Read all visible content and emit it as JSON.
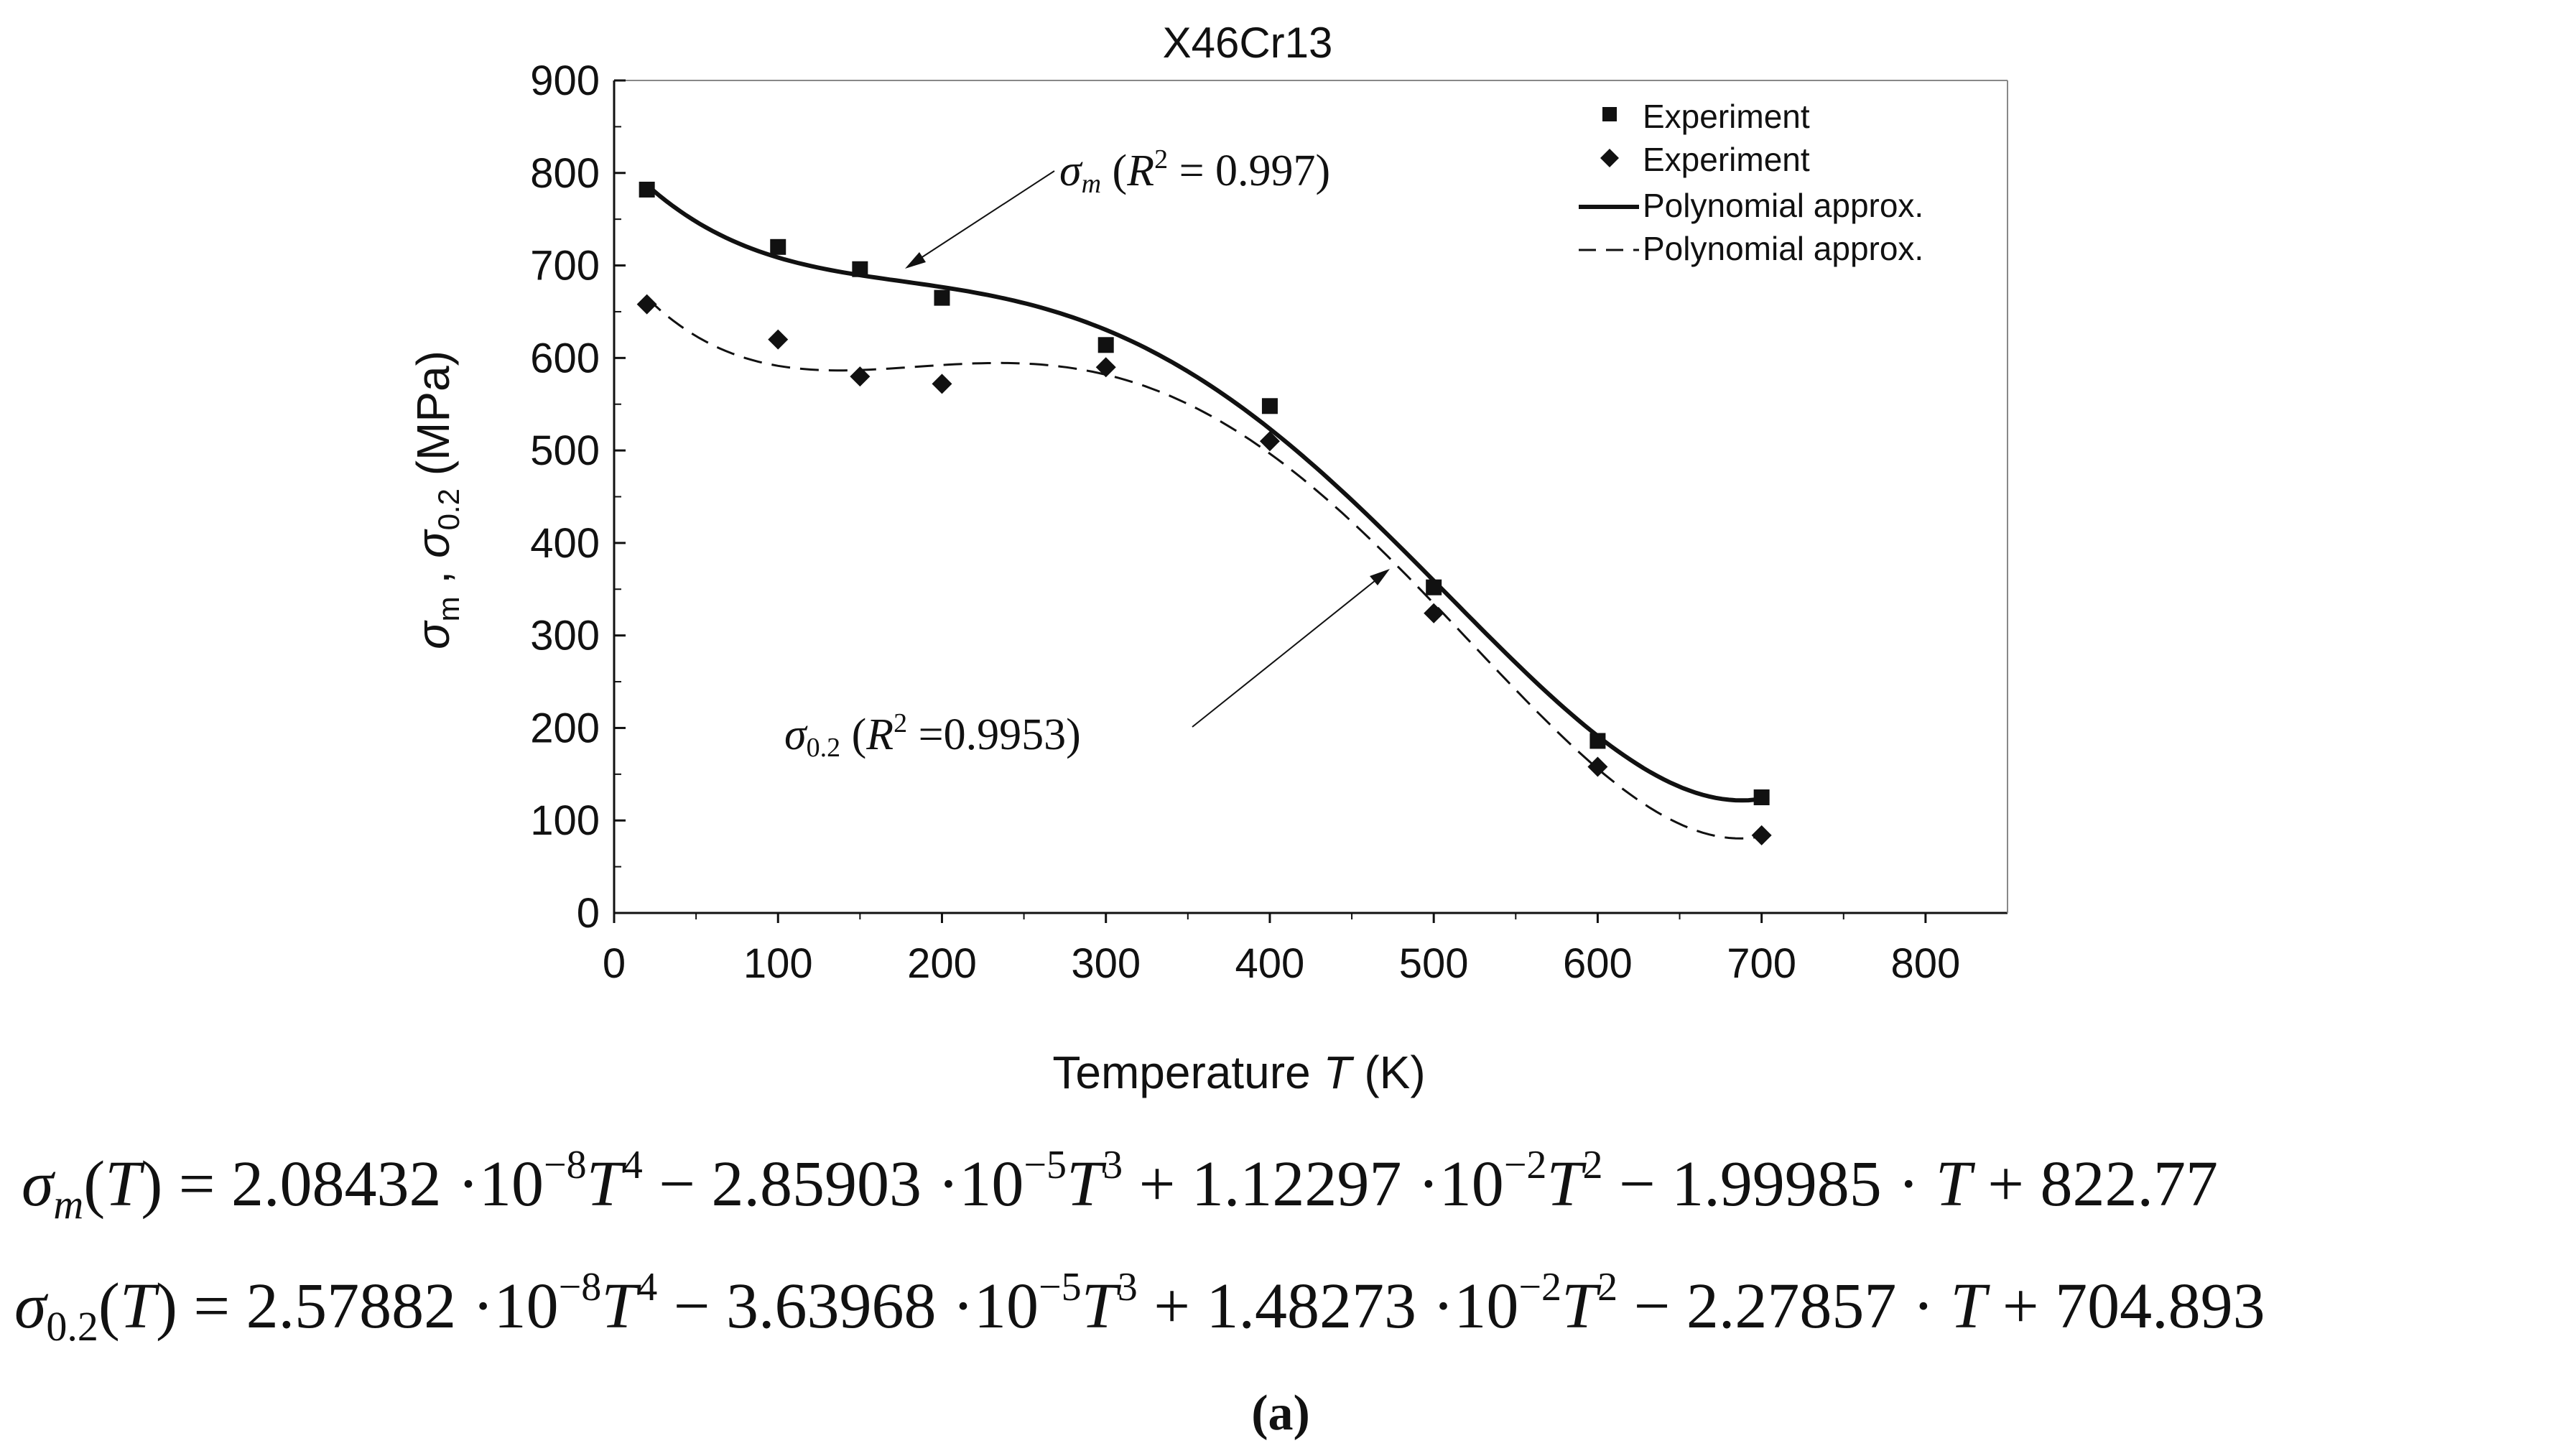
{
  "chart_data": {
    "type": "scatter",
    "title": "X46Cr13",
    "xlabel": "Temperature T (K)",
    "ylabel": "σm , σ0.2 (MPa)",
    "xlim": [
      0,
      850
    ],
    "ylim": [
      0,
      900
    ],
    "x_ticks": [
      0,
      100,
      200,
      300,
      400,
      500,
      600,
      700,
      800
    ],
    "y_ticks": [
      0,
      100,
      200,
      300,
      400,
      500,
      600,
      700,
      800,
      900
    ],
    "series": [
      {
        "name": "Experiment",
        "marker": "square",
        "quantity": "σm",
        "x": [
          20,
          100,
          150,
          200,
          300,
          400,
          500,
          600,
          700
        ],
        "y": [
          782,
          720,
          696,
          665,
          614,
          548,
          352,
          186,
          125
        ]
      },
      {
        "name": "Experiment",
        "marker": "diamond",
        "quantity": "σ0.2",
        "x": [
          20,
          100,
          150,
          200,
          300,
          400,
          500,
          600,
          700
        ],
        "y": [
          658,
          620,
          580,
          572,
          590,
          510,
          324,
          158,
          84
        ]
      },
      {
        "name": "Polynomial approx.",
        "style": "solid",
        "quantity": "σm",
        "coefficients": [
          2.08432e-08,
          -2.85903e-05,
          0.0112297,
          -1.99985,
          822.77
        ],
        "r2_label": "σm (R2 = 0.997)"
      },
      {
        "name": "Polynomial approx.",
        "style": "dashed",
        "quantity": "σ0.2",
        "coefficients": [
          2.57882e-08,
          -3.63968e-05,
          0.0148273,
          -2.27857,
          704.893
        ],
        "r2_label": "σ0.2 (R2 =0.9953)"
      }
    ],
    "legend_position": "top-right",
    "annotations": [
      {
        "text": "σm (R2 = 0.997)",
        "points_to": "σm curve near T=180 K"
      },
      {
        "text": "σ0.2 (R2 =0.9953)",
        "points_to": "σ0.2 curve near T=480 K"
      }
    ]
  },
  "equations": {
    "sigma_m": "σm(T) = 2.08432·10−8T4 − 2.85903·10−5T3 + 1.12297·10−2T2 − 1.99985·T + 822.77",
    "sigma_02": "σ0.2(T) = 2.57882·10−8T4 − 3.63968·10−5T3 + 1.48273·10−2T2 − 2.27857·T + 704.893"
  },
  "caption": "(a)"
}
